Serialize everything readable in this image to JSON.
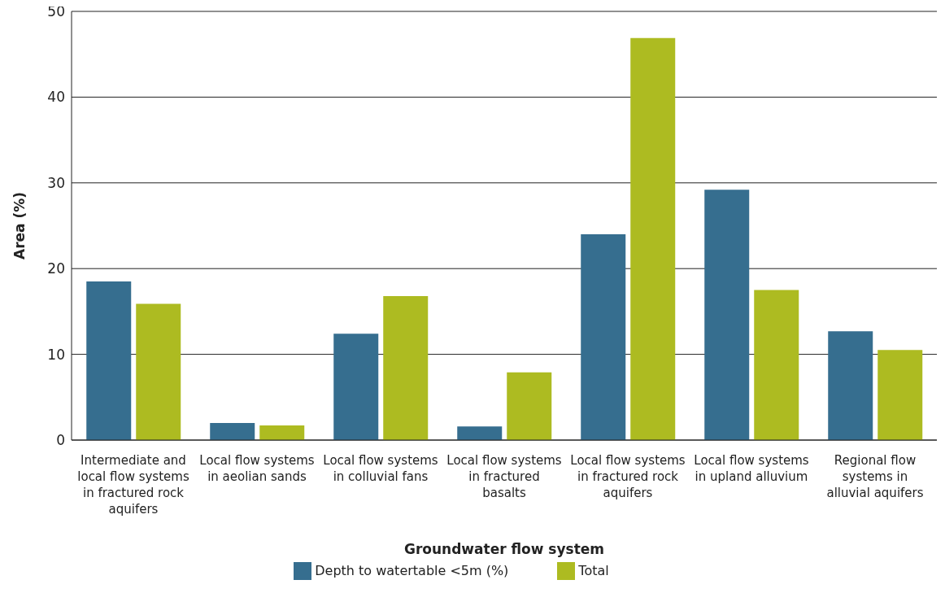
{
  "chart_data": {
    "type": "bar",
    "xlabel": "Groundwater flow system",
    "ylabel": "Area (%)",
    "categories": [
      "Intermediate and local flow systems in fractured rock aquifers",
      "Local flow systems in aeolian sands",
      "Local flow systems in colluvial fans",
      "Local flow systems in fractured basalts",
      "Local flow systems in fractured rock aquifers",
      "Local flow systems in upland alluvium",
      "Regional flow systems in alluvial aquifers"
    ],
    "series": [
      {
        "name": "Depth to watertable <5m (%)",
        "color": "#366e8f",
        "values": [
          18.5,
          2.0,
          12.4,
          1.6,
          24.0,
          29.2,
          12.7
        ]
      },
      {
        "name": "Total",
        "color": "#adbb21",
        "values": [
          15.9,
          1.7,
          16.8,
          7.9,
          46.9,
          17.5,
          10.5
        ]
      }
    ],
    "ylim": [
      0,
      50
    ],
    "yticks": [
      0,
      10,
      20,
      30,
      40,
      50
    ],
    "grid": "y",
    "legend": "bottom"
  }
}
